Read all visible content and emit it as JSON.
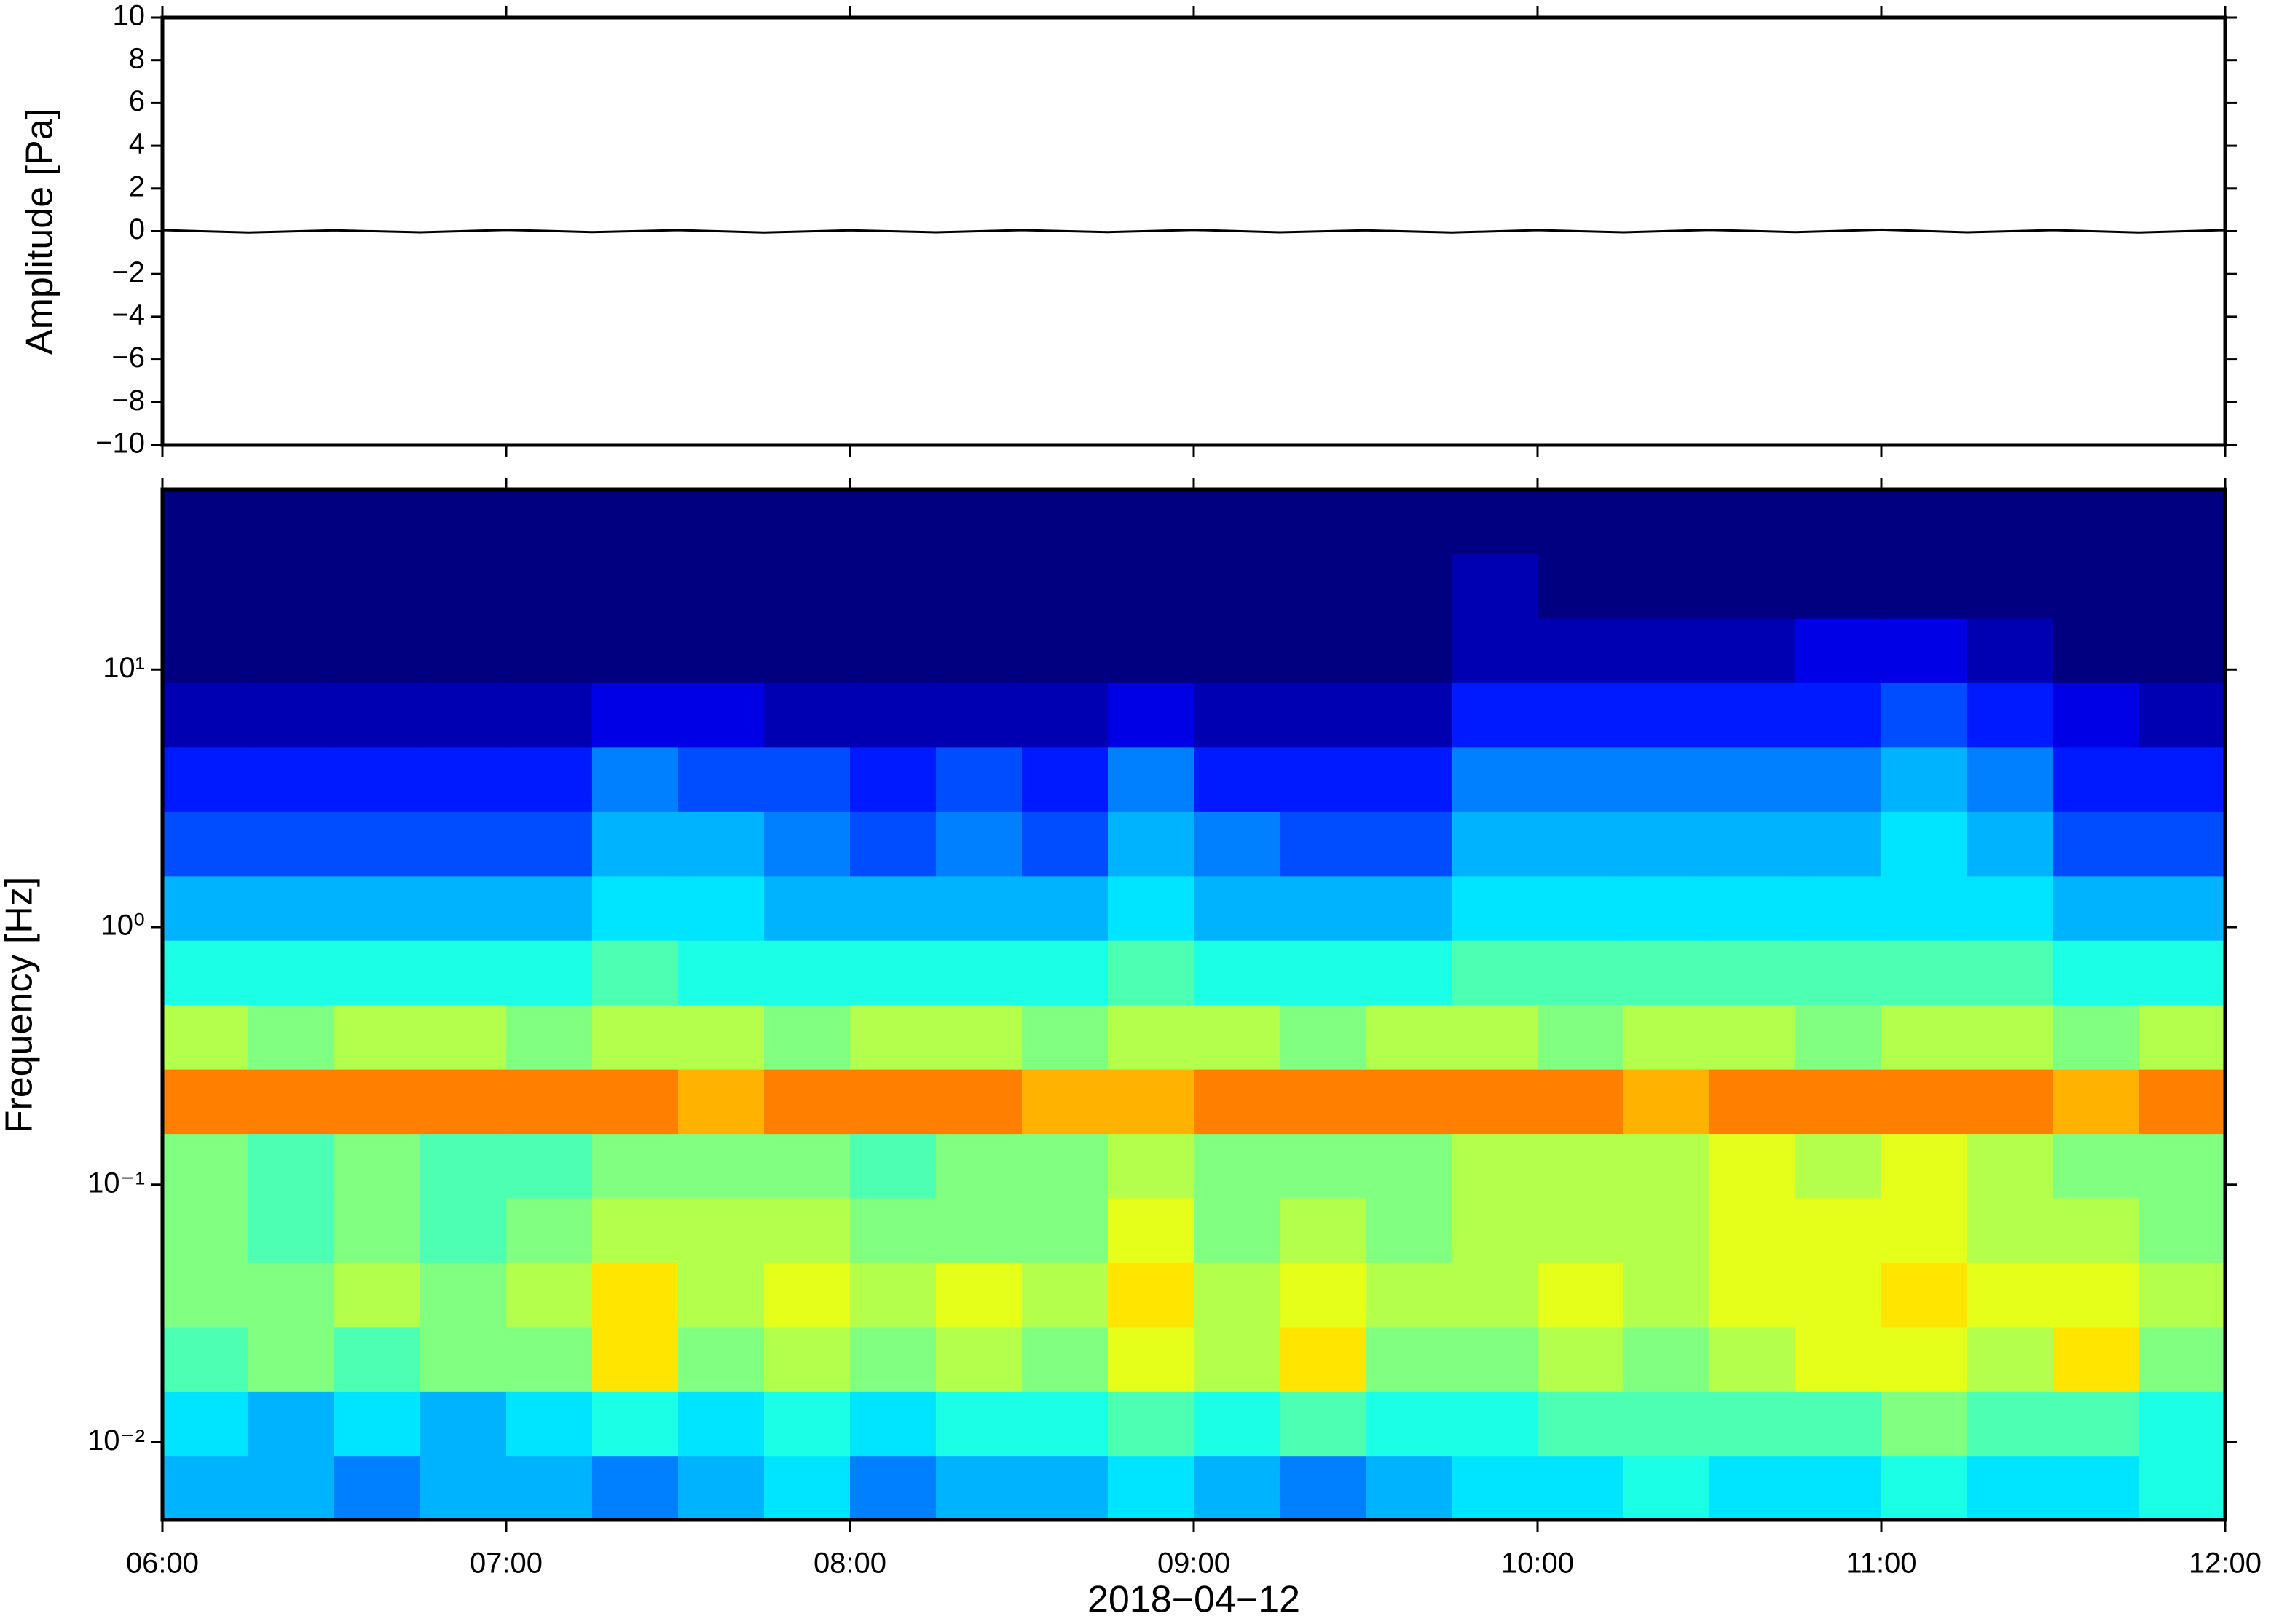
{
  "chart_data": [
    {
      "type": "line",
      "ylabel": "Amplitude [Pa]",
      "color": "#000000",
      "x": [
        6,
        6.25,
        6.5,
        6.75,
        7,
        7.25,
        7.5,
        7.75,
        8,
        8.25,
        8.5,
        8.75,
        9,
        9.25,
        9.5,
        9.75,
        10,
        10.25,
        10.5,
        10.75,
        11,
        11.25,
        11.5,
        11.75,
        12
      ],
      "values": [
        0.05,
        -0.06,
        0.04,
        -0.05,
        0.06,
        -0.04,
        0.05,
        -0.06,
        0.04,
        -0.05,
        0.05,
        -0.04,
        0.06,
        -0.05,
        0.04,
        -0.06,
        0.05,
        -0.05,
        0.06,
        -0.04,
        0.07,
        -0.05,
        0.05,
        -0.06,
        0.05
      ],
      "xlim": [
        6,
        12
      ],
      "ylim": [
        -10,
        10
      ],
      "yticks": [
        {
          "value": -10,
          "label": "−10"
        },
        {
          "value": -8,
          "label": "−8"
        },
        {
          "value": -6,
          "label": "−6"
        },
        {
          "value": -4,
          "label": "−4"
        },
        {
          "value": -2,
          "label": "−2"
        },
        0,
        2,
        4,
        6,
        8,
        10
      ]
    },
    {
      "type": "heatmap",
      "ylabel": "Frequency [Hz]",
      "xlabel": "2018−04−12",
      "colormap": "jet",
      "zlim": [
        0,
        10
      ],
      "ylog": true,
      "xbins": [
        6,
        6.25,
        6.5,
        6.75,
        7,
        7.25,
        7.5,
        7.75,
        8,
        8.25,
        8.5,
        8.75,
        9,
        9.25,
        9.5,
        9.75,
        10,
        10.25,
        10.5,
        10.75,
        11,
        11.25,
        11.5,
        11.75,
        12
      ],
      "ybins": [
        0.005,
        0.00889,
        0.0158,
        0.0281,
        0.05,
        0.0889,
        0.158,
        0.281,
        0.5,
        0.889,
        1.58,
        2.81,
        5,
        8.89,
        15.8,
        28.1,
        50
      ],
      "values": [
        [
          3,
          3,
          2.5,
          3,
          3,
          2.5,
          3,
          3.5,
          2.5,
          3,
          3,
          3.5,
          3,
          2.5,
          3,
          3.5,
          3.5,
          4,
          3.5,
          3.5,
          4,
          3.5,
          3.5,
          4
        ],
        [
          3.5,
          3,
          3.5,
          3,
          3.5,
          4,
          3.5,
          4,
          3.5,
          4,
          4,
          4.5,
          4,
          4.5,
          4,
          4,
          4.5,
          4.5,
          4.5,
          4.5,
          5,
          4.5,
          4.5,
          4
        ],
        [
          4.5,
          5,
          4.5,
          5,
          5,
          6.5,
          5,
          5.5,
          5,
          5.5,
          5,
          6,
          5.5,
          6.5,
          5,
          5,
          5.5,
          5,
          5.5,
          6,
          6,
          5.5,
          6.5,
          5
        ],
        [
          5,
          5,
          5.5,
          5,
          5.5,
          6.5,
          5.5,
          6,
          5.5,
          6,
          5.5,
          6.5,
          5.5,
          6,
          5.5,
          5.5,
          6,
          5.5,
          6,
          6,
          6.5,
          6,
          6,
          5.5
        ],
        [
          5,
          4.5,
          5,
          4.5,
          5,
          5.5,
          5.5,
          5.5,
          5,
          5,
          5,
          6,
          5,
          5.5,
          5,
          5.5,
          5.5,
          5.5,
          6,
          6,
          6,
          5.5,
          5.5,
          5
        ],
        [
          5,
          4.5,
          5,
          4.5,
          4.5,
          5,
          5,
          5,
          4.5,
          5,
          5,
          5.5,
          5,
          5,
          5,
          5.5,
          5.5,
          5.5,
          6,
          5.5,
          6,
          5.5,
          5,
          5
        ],
        [
          7.5,
          7.5,
          7.5,
          7.5,
          7.5,
          7.5,
          7,
          7.5,
          7.5,
          7.5,
          7,
          7,
          7.5,
          7.5,
          7.5,
          7.5,
          7.5,
          7,
          7.5,
          7.5,
          7.5,
          7.5,
          7,
          7.5
        ],
        [
          5.5,
          5,
          5.5,
          5.5,
          5,
          5.5,
          5.5,
          5,
          5.5,
          5.5,
          5,
          5.5,
          5.5,
          5,
          5.5,
          5.5,
          5,
          5.5,
          5.5,
          5,
          5.5,
          5.5,
          5,
          5.5
        ],
        [
          4,
          4,
          4,
          4,
          4,
          4.5,
          4,
          4,
          4,
          4,
          4,
          4.5,
          4,
          4,
          4,
          4.5,
          4.5,
          4.5,
          4.5,
          4.5,
          4.5,
          4.5,
          4,
          4
        ],
        [
          3,
          3,
          3,
          3,
          3,
          3.5,
          3.5,
          3,
          3,
          3,
          3,
          3.5,
          3,
          3,
          3,
          3.5,
          3.5,
          3.5,
          3.5,
          3.5,
          3.5,
          3.5,
          3,
          3
        ],
        [
          2,
          2,
          2,
          2,
          2,
          3,
          3,
          2.5,
          2,
          2.5,
          2,
          3,
          2.5,
          2,
          2,
          3,
          3,
          3,
          3,
          3,
          3.5,
          3,
          2,
          2
        ],
        [
          1.5,
          1.5,
          1.5,
          1.5,
          1.5,
          2.5,
          2,
          2,
          1.5,
          2,
          1.5,
          2.5,
          1.5,
          1.5,
          1.5,
          2.5,
          2.5,
          2.5,
          2.5,
          2.5,
          3,
          2.5,
          1.5,
          1.5
        ],
        [
          0.5,
          0.5,
          0.5,
          0.5,
          0.5,
          1,
          1,
          0.5,
          0.5,
          0.5,
          0.5,
          1,
          0.5,
          0.5,
          0.5,
          1.5,
          1.5,
          1.5,
          1.5,
          1.5,
          2,
          1.5,
          1,
          0.5
        ],
        [
          0,
          0,
          0,
          0,
          0,
          0,
          0,
          0,
          0,
          0,
          0,
          0,
          0,
          0,
          0,
          0.5,
          0.5,
          0.5,
          0.5,
          1,
          1,
          0.5,
          0,
          0
        ],
        [
          0,
          0,
          0,
          0,
          0,
          0,
          0,
          0,
          0,
          0,
          0,
          0,
          0,
          0,
          0,
          0.5,
          0,
          0,
          0,
          0,
          0,
          0,
          0,
          0
        ],
        [
          0,
          0,
          0,
          0,
          0,
          0,
          0,
          0,
          0,
          0,
          0,
          0,
          0,
          0,
          0,
          0,
          0,
          0,
          0,
          0,
          0,
          0,
          0,
          0
        ]
      ],
      "xlim": [
        6,
        12
      ],
      "ylim": [
        0.005,
        50
      ],
      "xticks": [
        {
          "value": 6,
          "label": "06:00"
        },
        {
          "value": 7,
          "label": "07:00"
        },
        {
          "value": 8,
          "label": "08:00"
        },
        {
          "value": 9,
          "label": "09:00"
        },
        {
          "value": 10,
          "label": "10:00"
        },
        {
          "value": 11,
          "label": "11:00"
        },
        {
          "value": 12,
          "label": "12:00"
        }
      ],
      "yticks": [
        {
          "value": 0.01,
          "label": "10⁻²"
        },
        {
          "value": 0.1,
          "label": "10⁻¹"
        },
        {
          "value": 1,
          "label": "10⁰"
        },
        {
          "value": 10,
          "label": "10¹"
        }
      ]
    }
  ]
}
